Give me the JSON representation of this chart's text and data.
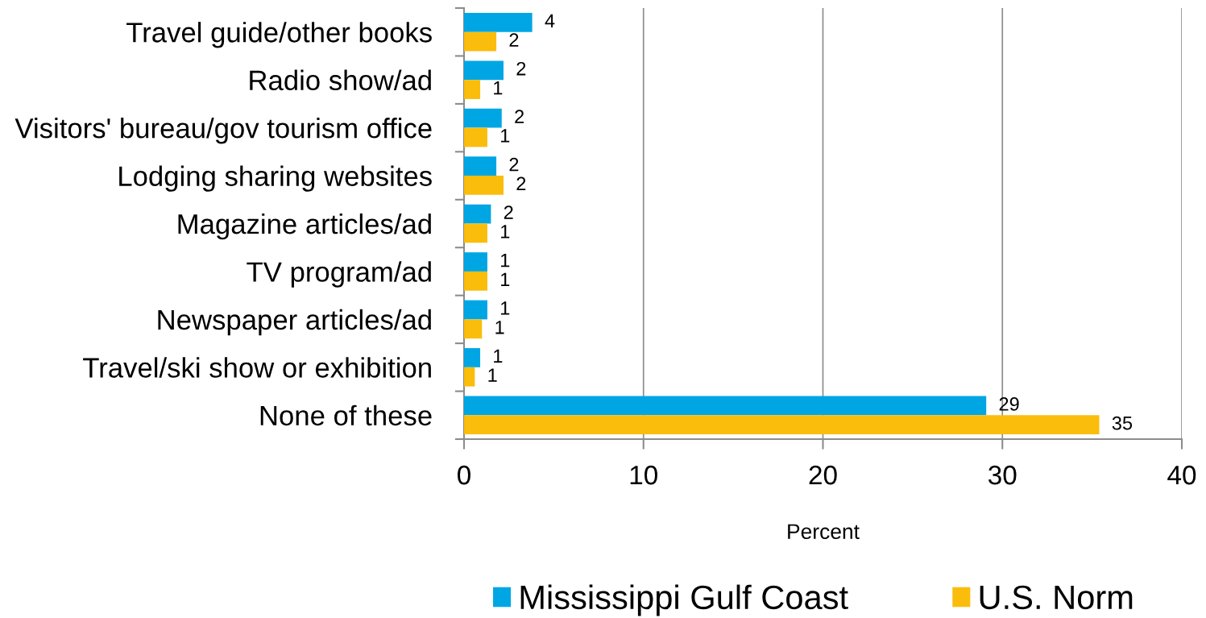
{
  "chart_data": {
    "type": "bar",
    "orientation": "horizontal",
    "categories": [
      "Travel guide/other books",
      "Radio show/ad",
      "Visitors' bureau/gov tourism office",
      "Lodging sharing websites",
      "Magazine articles/ad",
      "TV program/ad",
      "Newspaper articles/ad",
      "Travel/ski show or exhibition",
      "None of these"
    ],
    "series": [
      {
        "name": "Mississippi Gulf Coast",
        "color": "#00a6e4",
        "values": [
          3.8,
          2.2,
          2.1,
          1.8,
          1.5,
          1.3,
          1.3,
          0.9,
          29.1
        ],
        "value_labels": [
          "4",
          "2",
          "2",
          "2",
          "2",
          "1",
          "1",
          "1",
          "29"
        ]
      },
      {
        "name": "U.S. Norm",
        "color": "#fbbd0b",
        "values": [
          1.8,
          0.9,
          1.3,
          2.2,
          1.3,
          1.3,
          1.0,
          0.6,
          35.4
        ],
        "value_labels": [
          "2",
          "1",
          "1",
          "2",
          "1",
          "1",
          "1",
          "1",
          "35"
        ]
      }
    ],
    "xlabel": "Percent",
    "xlim": [
      0,
      40
    ],
    "xticks": [
      0,
      10,
      20,
      30,
      40
    ],
    "grid": "x",
    "legend": "bottom"
  }
}
